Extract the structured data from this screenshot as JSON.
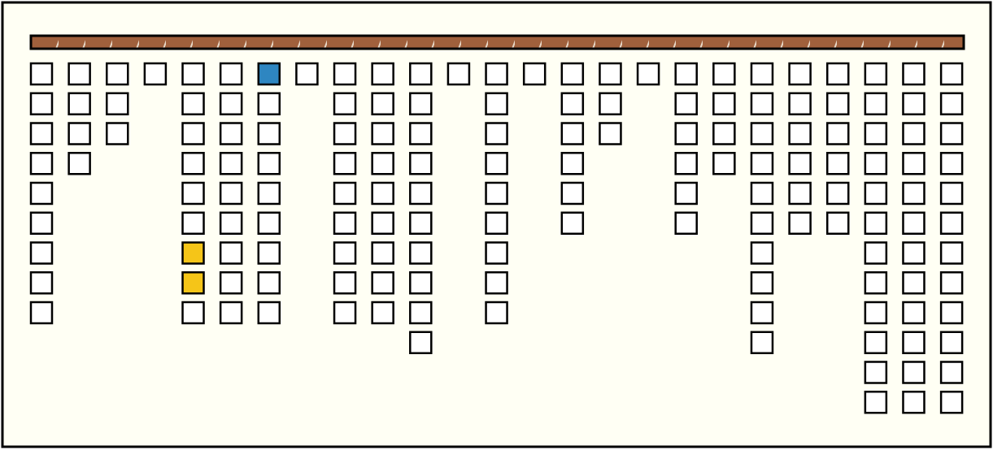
{
  "columns": [
    9,
    4,
    3,
    1,
    9,
    9,
    9,
    1,
    9,
    9,
    10,
    1,
    9,
    1,
    6,
    3,
    1,
    6,
    4,
    10,
    6,
    6,
    12,
    12,
    12
  ],
  "highlights": [
    {
      "column": 6,
      "cell": 0,
      "color": "#2e86c1"
    },
    {
      "column": 4,
      "cell": 6,
      "color": "#f5c518"
    },
    {
      "column": 4,
      "cell": 7,
      "color": "#f5c518"
    }
  ]
}
